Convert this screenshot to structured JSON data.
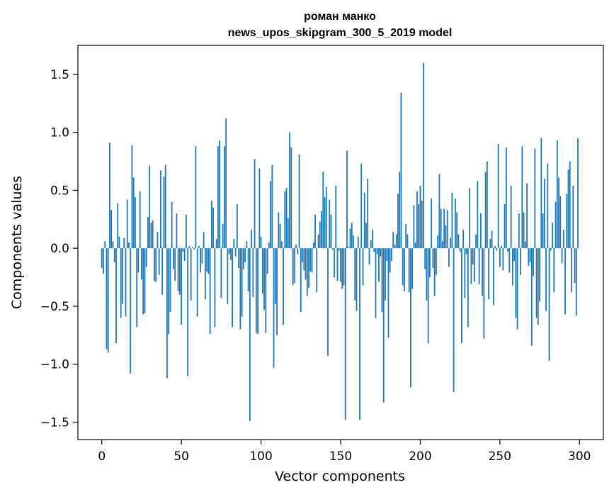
{
  "chart_data": {
    "type": "bar",
    "title": "роман манко",
    "subtitle": "news_upos_skipgram_300_5_2019 model",
    "xlabel": "Vector components",
    "ylabel": "Components values",
    "xlim": [
      -15,
      315
    ],
    "ylim": [
      -1.65,
      1.75
    ],
    "xticks": [
      0,
      50,
      100,
      150,
      200,
      250,
      300
    ],
    "yticks": [
      -1.5,
      -1.0,
      -0.5,
      0.0,
      0.5,
      1.0,
      1.5
    ],
    "xtick_labels": [
      "0",
      "50",
      "100",
      "150",
      "200",
      "250",
      "300"
    ],
    "ytick_labels": [
      "−1.5",
      "−1.0",
      "−0.5",
      "0.0",
      "0.5",
      "1.0",
      "1.5"
    ],
    "grid": false,
    "bar_color": "#1f77b4",
    "x_start": 0,
    "values": [
      -0.17,
      -0.22,
      0.06,
      -0.87,
      -0.9,
      0.91,
      0.33,
      0.06,
      -0.12,
      -0.82,
      0.39,
      0.1,
      -0.6,
      -0.48,
      0.09,
      -0.59,
      0.42,
      0.05,
      -1.08,
      0.89,
      0.61,
      0.44,
      -0.68,
      -0.21,
      0.49,
      -0.27,
      -0.57,
      -0.56,
      -0.16,
      0.27,
      0.71,
      0.22,
      0.24,
      -0.28,
      -0.29,
      0.14,
      -0.23,
      0.67,
      -0.4,
      0.62,
      0.72,
      -1.12,
      -0.74,
      -0.55,
      0.4,
      -0.18,
      -0.28,
      0.3,
      -0.37,
      -0.4,
      -0.66,
      -0.03,
      -0.11,
      0.29,
      -1.1,
      0.02,
      -0.45,
      0.01,
      -0.01,
      0.88,
      -0.59,
      0.02,
      -0.21,
      -0.13,
      0.14,
      -0.44,
      -0.2,
      -0.22,
      -0.74,
      0.41,
      0.35,
      -0.68,
      0.08,
      0.88,
      0.93,
      -0.43,
      0.21,
      0.88,
      1.12,
      -0.48,
      -0.05,
      -0.1,
      -0.68,
      0.08,
      -0.07,
      0.38,
      -0.17,
      -0.7,
      -0.59,
      -0.18,
      -0.12,
      0.06,
      -0.37,
      -1.49,
      0.16,
      -0.42,
      0.77,
      -0.73,
      -0.74,
      0.69,
      0.1,
      -0.39,
      -0.53,
      -0.73,
      -0.22,
      0.05,
      0.58,
      0.72,
      -1.03,
      -0.48,
      -0.75,
      0.31,
      0.21,
      0.06,
      -0.66,
      0.49,
      0.52,
      0.26,
      1.0,
      0.87,
      -0.32,
      -0.3,
      0.03,
      -0.05,
      0.81,
      -0.55,
      -0.12,
      -0.19,
      -0.27,
      -0.41,
      -0.34,
      -0.2,
      -0.21,
      0.05,
      0.29,
      -0.38,
      0.12,
      0.23,
      0.32,
      0.66,
      0.44,
      0.53,
      -0.93,
      0.42,
      0.29,
      -0.01,
      -0.25,
      0.54,
      -0.28,
      -0.02,
      -0.29,
      -0.35,
      -0.32,
      -1.48,
      0.84,
      0.01,
      0.17,
      0.22,
      0.11,
      -0.45,
      -0.54,
      0.1,
      -1.48,
      0.73,
      -0.32,
      0.48,
      0.22,
      0.6,
      -0.14,
      0.07,
      0.16,
      -0.03,
      -0.6,
      -0.05,
      -0.29,
      -0.07,
      -0.55,
      -1.33,
      -0.45,
      -0.11,
      -0.77,
      -0.21,
      -0.11,
      0.14,
      0.03,
      0.12,
      0.47,
      0.66,
      1.34,
      -0.32,
      -0.37,
      0.21,
      0.12,
      -0.38,
      -1.2,
      -0.35,
      0.37,
      0.05,
      0.49,
      0.38,
      0.54,
      0.41,
      1.6,
      -0.18,
      -0.45,
      -0.82,
      -0.25,
      0.43,
      -0.17,
      -0.41,
      -0.23,
      0.11,
      0.64,
      0.34,
      0.06,
      0.34,
      0.2,
      0.33,
      -0.16,
      0.09,
      0.48,
      -1.24,
      0.43,
      0.31,
      0.12,
      -0.03,
      -0.82,
      0.16,
      -0.43,
      -0.05,
      -0.68,
      0.52,
      -0.31,
      -0.14,
      -0.29,
      0.12,
      0.58,
      -0.31,
      0.3,
      -0.41,
      -0.78,
      0.66,
      0.75,
      -0.44,
      0.08,
      0.15,
      -0.49,
      0.02,
      -0.02,
      0.9,
      -0.16,
      0.02,
      -0.19,
      0.38,
      0.87,
      -0.03,
      -0.21,
      0.54,
      -0.32,
      -0.11,
      -0.6,
      -0.7,
      0.3,
      -0.23,
      0.88,
      0.31,
      0.06,
      0.56,
      -0.15,
      -0.12,
      -0.84,
      -0.24,
      0.86,
      -0.6,
      -0.66,
      -0.46,
      0.95,
      0.3,
      0.6,
      -0.54,
      0.73,
      -0.97,
      -0.02,
      0.22,
      -0.38,
      0.4,
      0.93,
      0.61,
      0.45,
      -0.13,
      0.16,
      -0.57,
      0.47,
      0.68,
      0.75,
      -0.38,
      0.54,
      -0.3,
      -0.58,
      0.95
    ]
  }
}
